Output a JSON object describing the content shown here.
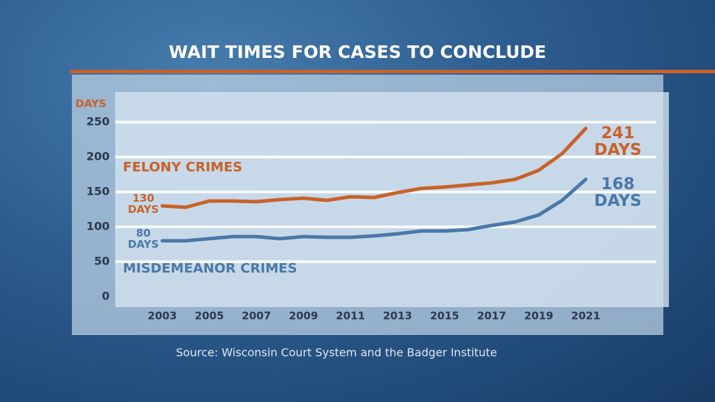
{
  "chart_data": {
    "type": "line",
    "title": "WAIT TIMES FOR CASES TO CONCLUDE",
    "y_label": "DAYS",
    "source": "Source: Wisconsin Court System and the Badger Institute",
    "x": [
      2003,
      2004,
      2005,
      2006,
      2007,
      2008,
      2009,
      2010,
      2011,
      2012,
      2013,
      2014,
      2015,
      2016,
      2017,
      2018,
      2019,
      2020,
      2021
    ],
    "xlim": [
      2001,
      2024
    ],
    "xticks": [
      2003,
      2005,
      2007,
      2009,
      2011,
      2013,
      2015,
      2017,
      2019,
      2021
    ],
    "ylim": [
      0,
      250
    ],
    "yticks": [
      0,
      50,
      100,
      150,
      200,
      250
    ],
    "grid": true,
    "series": [
      {
        "name": "FELONY CRIMES",
        "color": "#c8622a",
        "values": [
          130,
          128,
          137,
          137,
          136,
          139,
          141,
          138,
          143,
          142,
          149,
          155,
          157,
          160,
          163,
          168,
          181,
          205,
          241
        ],
        "value_labels": [
          "130\nDAYS",
          null,
          null,
          null,
          null,
          null,
          null,
          null,
          null,
          null,
          null,
          null,
          null,
          null,
          null,
          null,
          null,
          null,
          "241\nDAYS"
        ]
      },
      {
        "name": "MISDEMEANOR CRIMES",
        "color": "#4a78a8",
        "values": [
          80,
          80,
          83,
          86,
          86,
          83,
          86,
          85,
          85,
          87,
          90,
          94,
          94,
          96,
          102,
          107,
          117,
          138,
          168
        ],
        "value_labels": [
          "80\nDAYS",
          null,
          null,
          null,
          null,
          null,
          null,
          null,
          null,
          null,
          null,
          null,
          null,
          null,
          null,
          null,
          null,
          null,
          "168\nDAYS"
        ]
      }
    ]
  }
}
